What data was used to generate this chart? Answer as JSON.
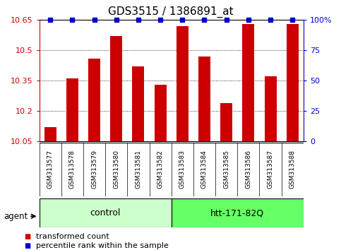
{
  "title": "GDS3515 / 1386891_at",
  "samples": [
    "GSM313577",
    "GSM313578",
    "GSM313579",
    "GSM313580",
    "GSM313581",
    "GSM313582",
    "GSM313583",
    "GSM313584",
    "GSM313585",
    "GSM313586",
    "GSM313587",
    "GSM313588"
  ],
  "values": [
    10.12,
    10.36,
    10.46,
    10.57,
    10.42,
    10.33,
    10.62,
    10.47,
    10.24,
    10.63,
    10.37,
    10.63
  ],
  "percentile": [
    100,
    100,
    100,
    100,
    100,
    100,
    100,
    100,
    100,
    100,
    100,
    100
  ],
  "bar_color": "#cc0000",
  "dot_color": "#0000cc",
  "ylim_left": [
    10.05,
    10.65
  ],
  "yticks_left": [
    10.05,
    10.2,
    10.35,
    10.5,
    10.65
  ],
  "ylim_right": [
    0,
    100
  ],
  "yticks_right": [
    0,
    25,
    50,
    75,
    100
  ],
  "yticklabels_right": [
    "0",
    "25",
    "50",
    "75",
    "100%"
  ],
  "groups": [
    {
      "label": "control",
      "start": 0,
      "end": 6,
      "color": "#ccffcc"
    },
    {
      "label": "htt-171-82Q",
      "start": 6,
      "end": 12,
      "color": "#66ff66"
    }
  ],
  "agent_label": "agent",
  "bg_color": "#ffffff",
  "plot_bg_color": "#ffffff",
  "left_axis_color": "#cc0000",
  "right_axis_color": "#0000cc",
  "legend_items": [
    {
      "label": "transformed count",
      "color": "#cc0000"
    },
    {
      "label": "percentile rank within the sample",
      "color": "#0000cc"
    }
  ],
  "title_fontsize": 11,
  "tick_fontsize": 8,
  "sample_fontsize": 6.5,
  "group_fontsize": 9,
  "legend_fontsize": 8,
  "bar_width": 0.55
}
